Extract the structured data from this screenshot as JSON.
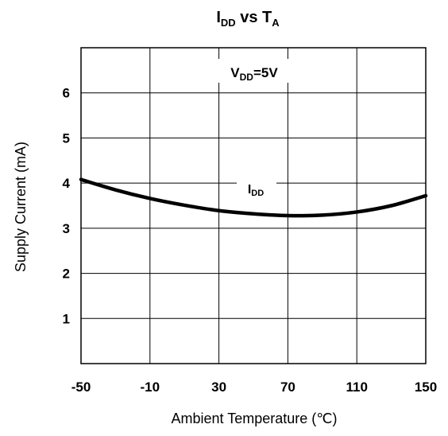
{
  "chart_data": {
    "type": "line",
    "title": {
      "main": "I",
      "sub": "DD",
      "rest": " vs T",
      "sub2": "A"
    },
    "xlabel": "Ambient Temperature (℃)",
    "ylabel": "Supply Current (mA)",
    "xlim": [
      -50,
      150
    ],
    "ylim": [
      0,
      7
    ],
    "xticks": [
      -50,
      -10,
      30,
      70,
      110,
      150
    ],
    "yticks": [
      1,
      2,
      3,
      4,
      5,
      6
    ],
    "grid": true,
    "annotation": {
      "main": "V",
      "sub": "DD",
      "rest": "=5V"
    },
    "series": [
      {
        "name": {
          "main": "I",
          "sub": "DD"
        },
        "color": "#000000",
        "x": [
          -50,
          -30,
          -10,
          10,
          30,
          50,
          70,
          90,
          110,
          130,
          150
        ],
        "y": [
          4.08,
          3.85,
          3.66,
          3.51,
          3.39,
          3.32,
          3.28,
          3.29,
          3.36,
          3.5,
          3.72
        ]
      }
    ]
  }
}
